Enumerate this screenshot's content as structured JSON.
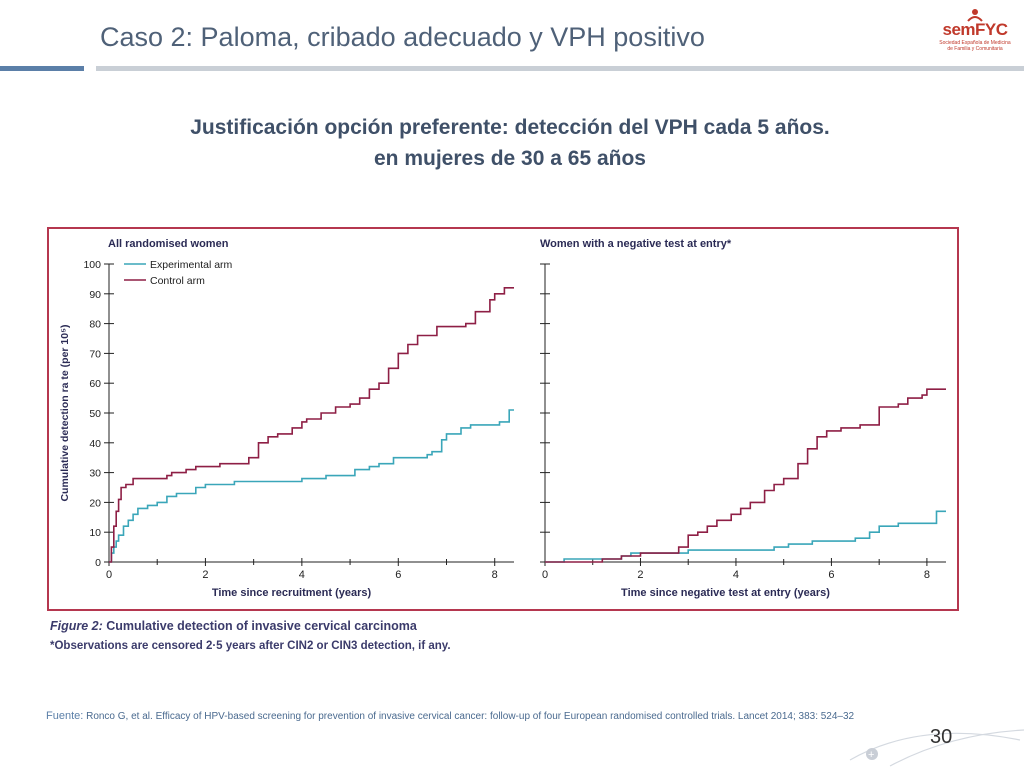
{
  "slide": {
    "title": "Caso 2: Paloma, cribado adecuado y VPH positivo",
    "subtitle_line1": "Justificación opción preferente: detección del VPH cada 5 años.",
    "subtitle_line2": "en mujeres de 30 a 65 años",
    "source_label": "Fuente:",
    "source_text": " Ronco G, et al. Efficacy of HPV-based screening for prevention of invasive cervical cancer: follow-up of four European randomised controlled trials. Lancet 2014; 383: 524–32",
    "page_number": "30",
    "logo_text": "semFYC",
    "logo_subtext": "Sociedad Española de Medicina de Familia y Comunitaria"
  },
  "colors": {
    "experimental": "#3aa6b9",
    "control": "#8e1f45",
    "frame": "#b5374f",
    "title": "#4f6178"
  },
  "figure": {
    "caption_title": "Figure 2: Cumulative detection of invasive cervical carcinoma",
    "caption_title_prefix": "Figure 2:",
    "caption_title_rest": " Cumulative detection of invasive cervical carcinoma",
    "caption_note": "*Observations are censored 2·5 years after CIN2 or CIN3 detection, if any."
  },
  "chart_data": [
    {
      "type": "line",
      "title": "All randomised women",
      "xlabel": "Time since recruitment (years)",
      "ylabel": "Cumulative detection ra te (per 10⁵)",
      "xlim": [
        0,
        8.4
      ],
      "ylim": [
        0,
        100
      ],
      "xticks": [
        "0",
        "2",
        "4",
        "6",
        "8"
      ],
      "yticks": [
        "0",
        "10",
        "20",
        "30",
        "40",
        "50",
        "60",
        "70",
        "80",
        "90",
        "100"
      ],
      "legend": "top-left",
      "series": [
        {
          "name": "Experimental arm",
          "color": "#3aa6b9",
          "points": [
            [
              0,
              0
            ],
            [
              0.05,
              3
            ],
            [
              0.1,
              5
            ],
            [
              0.15,
              7
            ],
            [
              0.2,
              9
            ],
            [
              0.3,
              12
            ],
            [
              0.4,
              14
            ],
            [
              0.5,
              16
            ],
            [
              0.6,
              18
            ],
            [
              0.8,
              19
            ],
            [
              1.0,
              20
            ],
            [
              1.2,
              22
            ],
            [
              1.4,
              23
            ],
            [
              1.8,
              25
            ],
            [
              2.0,
              26
            ],
            [
              2.4,
              26
            ],
            [
              2.6,
              27
            ],
            [
              3.2,
              27
            ],
            [
              3.8,
              27
            ],
            [
              4.0,
              28
            ],
            [
              4.4,
              28
            ],
            [
              4.5,
              29
            ],
            [
              5.0,
              29
            ],
            [
              5.1,
              31
            ],
            [
              5.4,
              32
            ],
            [
              5.6,
              33
            ],
            [
              5.9,
              35
            ],
            [
              6.5,
              35
            ],
            [
              6.6,
              36
            ],
            [
              6.7,
              37
            ],
            [
              6.9,
              41
            ],
            [
              7.0,
              43
            ],
            [
              7.3,
              45
            ],
            [
              7.5,
              46
            ],
            [
              8.0,
              46
            ],
            [
              8.1,
              47
            ],
            [
              8.3,
              51
            ],
            [
              8.4,
              51
            ]
          ]
        },
        {
          "name": "Control arm",
          "color": "#8e1f45",
          "points": [
            [
              0,
              0
            ],
            [
              0.05,
              5
            ],
            [
              0.1,
              12
            ],
            [
              0.15,
              17
            ],
            [
              0.2,
              21
            ],
            [
              0.25,
              25
            ],
            [
              0.35,
              26
            ],
            [
              0.5,
              28
            ],
            [
              0.7,
              28
            ],
            [
              1.2,
              29
            ],
            [
              1.3,
              30
            ],
            [
              1.6,
              31
            ],
            [
              1.8,
              32
            ],
            [
              2.3,
              33
            ],
            [
              2.9,
              35
            ],
            [
              3.1,
              40
            ],
            [
              3.3,
              42
            ],
            [
              3.5,
              43
            ],
            [
              3.8,
              45
            ],
            [
              4.0,
              47
            ],
            [
              4.1,
              48
            ],
            [
              4.4,
              50
            ],
            [
              4.7,
              52
            ],
            [
              5.0,
              53
            ],
            [
              5.2,
              55
            ],
            [
              5.4,
              58
            ],
            [
              5.6,
              60
            ],
            [
              5.8,
              65
            ],
            [
              6.0,
              70
            ],
            [
              6.2,
              73
            ],
            [
              6.4,
              76
            ],
            [
              6.8,
              79
            ],
            [
              7.4,
              80
            ],
            [
              7.6,
              84
            ],
            [
              7.9,
              88
            ],
            [
              8.0,
              90
            ],
            [
              8.2,
              92
            ],
            [
              8.4,
              92
            ]
          ]
        }
      ]
    },
    {
      "type": "line",
      "title": "Women with a negative test at entry*",
      "xlabel": "Time since negative test at entry (years)",
      "ylabel": "",
      "xlim": [
        0,
        8.4
      ],
      "ylim": [
        0,
        100
      ],
      "xticks": [
        "0",
        "2",
        "4",
        "6",
        "8"
      ],
      "series": [
        {
          "name": "Experimental arm",
          "color": "#3aa6b9",
          "points": [
            [
              0,
              0
            ],
            [
              0.4,
              1
            ],
            [
              1.6,
              2
            ],
            [
              1.8,
              3
            ],
            [
              2.8,
              3
            ],
            [
              3.0,
              4
            ],
            [
              4.0,
              4
            ],
            [
              4.8,
              5
            ],
            [
              5.1,
              6
            ],
            [
              5.6,
              7
            ],
            [
              6.4,
              7
            ],
            [
              6.5,
              8
            ],
            [
              6.8,
              10
            ],
            [
              7.0,
              12
            ],
            [
              7.4,
              13
            ],
            [
              8.0,
              13
            ],
            [
              8.2,
              17
            ],
            [
              8.4,
              17
            ]
          ]
        },
        {
          "name": "Control arm",
          "color": "#8e1f45",
          "points": [
            [
              0,
              0
            ],
            [
              1.0,
              0
            ],
            [
              1.2,
              1
            ],
            [
              1.6,
              2
            ],
            [
              2.0,
              3
            ],
            [
              2.6,
              3
            ],
            [
              2.8,
              5
            ],
            [
              3.0,
              9
            ],
            [
              3.2,
              10
            ],
            [
              3.4,
              12
            ],
            [
              3.6,
              14
            ],
            [
              3.9,
              16
            ],
            [
              4.1,
              18
            ],
            [
              4.3,
              20
            ],
            [
              4.6,
              24
            ],
            [
              4.8,
              26
            ],
            [
              5.0,
              28
            ],
            [
              5.3,
              33
            ],
            [
              5.5,
              38
            ],
            [
              5.7,
              42
            ],
            [
              5.9,
              44
            ],
            [
              6.2,
              45
            ],
            [
              6.6,
              46
            ],
            [
              7.0,
              52
            ],
            [
              7.4,
              53
            ],
            [
              7.6,
              55
            ],
            [
              7.9,
              56
            ],
            [
              8.0,
              58
            ],
            [
              8.3,
              58
            ],
            [
              8.4,
              58
            ]
          ]
        }
      ]
    }
  ]
}
